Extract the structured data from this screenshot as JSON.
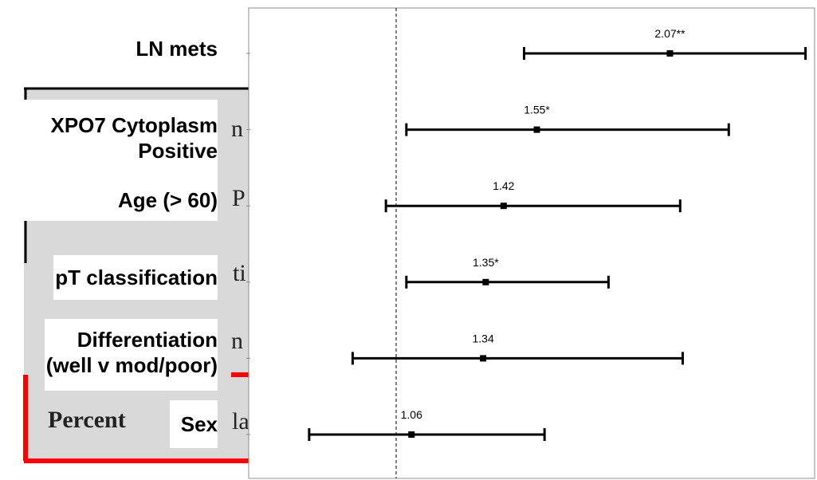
{
  "chart_data": {
    "type": "forest",
    "reference_line": 1,
    "rows": [
      {
        "label_lines": [
          "LN mets"
        ],
        "estimate": 2.07,
        "value_label": "2.07**",
        "ci_lower": 1.5,
        "ci_upper": 2.6
      },
      {
        "label_lines": [
          "XPO7 Cytoplasm",
          "Positive"
        ],
        "estimate": 1.55,
        "value_label": "1.55*",
        "ci_lower": 1.04,
        "ci_upper": 2.3
      },
      {
        "label_lines": [
          "Age (> 60)"
        ],
        "estimate": 1.42,
        "value_label": "1.42",
        "ci_lower": 0.96,
        "ci_upper": 2.11
      },
      {
        "label_lines": [
          "pT classification"
        ],
        "estimate": 1.35,
        "value_label": "1.35*",
        "ci_lower": 1.04,
        "ci_upper": 1.83
      },
      {
        "label_lines": [
          "Differentiation",
          "(well v mod/poor)"
        ],
        "estimate": 1.34,
        "value_label": "1.34",
        "ci_lower": 0.83,
        "ci_upper": 2.12
      },
      {
        "label_lines": [
          "Sex"
        ],
        "estimate": 1.06,
        "value_label": "1.06",
        "ci_lower": 0.66,
        "ci_upper": 1.58
      }
    ]
  },
  "background_fragments": {
    "percent_text": "Percent",
    "fragment_1": "P",
    "fragment_2": "ti",
    "fragment_3": "n",
    "fragment_4": "la",
    "fragment_5": "n"
  }
}
